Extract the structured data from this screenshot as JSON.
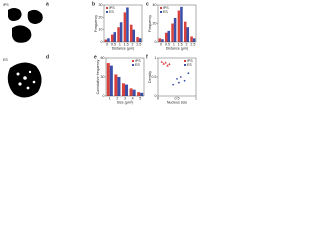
{
  "images": [
    {
      "panel": "a",
      "label": "iPS"
    },
    {
      "panel": "d",
      "label": "ES"
    }
  ],
  "chart_data": [
    {
      "type": "bar",
      "panel": "b",
      "xlabel": "Distance (μm)",
      "ylabel": "Frequency",
      "legend": "upper left",
      "categories": [
        "0",
        "0.5",
        "1",
        "1.5",
        "2",
        "2.5"
      ],
      "series": [
        {
          "name": "iPS",
          "color": "#d9413c",
          "values": [
            2,
            6,
            12,
            24,
            14,
            4
          ]
        },
        {
          "name": "ES",
          "color": "#3b4fa8",
          "values": [
            3,
            8,
            16,
            28,
            10,
            3
          ]
        }
      ],
      "ylim": [
        0,
        30
      ],
      "yticks": [
        0,
        10,
        20,
        30
      ]
    },
    {
      "type": "bar",
      "panel": "c",
      "xlabel": "Distance (μm)",
      "ylabel": "Frequency",
      "legend": "upper left",
      "categories": [
        "0",
        "0.5",
        "1",
        "1.5",
        "2",
        "2.5"
      ],
      "series": [
        {
          "name": "iPS",
          "color": "#d9413c",
          "values": [
            4,
            10,
            20,
            34,
            22,
            6
          ]
        },
        {
          "name": "ES",
          "color": "#3b4fa8",
          "values": [
            3,
            12,
            26,
            38,
            16,
            4
          ]
        }
      ],
      "ylim": [
        0,
        40
      ],
      "yticks": [
        0,
        20,
        40
      ]
    },
    {
      "type": "bar",
      "panel": "e",
      "xlabel": "Size (μm²)",
      "ylabel": "Cumulative frequency",
      "legend": "upper right",
      "categories": [
        "1",
        "2",
        "3",
        "4",
        "5"
      ],
      "series": [
        {
          "name": "iPS",
          "color": "#d9413c",
          "values": [
            52,
            34,
            20,
            12,
            6
          ]
        },
        {
          "name": "ES",
          "color": "#3b4fa8",
          "values": [
            48,
            30,
            18,
            10,
            5
          ]
        }
      ],
      "ylim": [
        0,
        60
      ],
      "yticks": [
        0,
        30,
        60
      ]
    },
    {
      "type": "scatter",
      "panel": "f",
      "xlabel": "Nucleus size",
      "ylabel": "Density",
      "legend": "upper right",
      "series": [
        {
          "name": "iPS",
          "color": "#d9413c",
          "marker": "triangle",
          "x": [
            0.1,
            0.15,
            0.2,
            0.25,
            0.3
          ],
          "values": [
            0.9,
            0.85,
            0.88,
            0.8,
            0.84
          ]
        },
        {
          "name": "ES",
          "color": "#3b4fa8",
          "marker": "circle",
          "x": [
            0.4,
            0.5,
            0.55,
            0.6,
            0.7,
            0.8
          ],
          "values": [
            0.3,
            0.45,
            0.35,
            0.5,
            0.4,
            0.6
          ]
        }
      ],
      "xlim": [
        0,
        1
      ],
      "xticks": [
        0,
        0.5,
        1
      ],
      "ylim": [
        0,
        1
      ],
      "yticks": [
        0,
        0.5,
        1
      ]
    }
  ]
}
